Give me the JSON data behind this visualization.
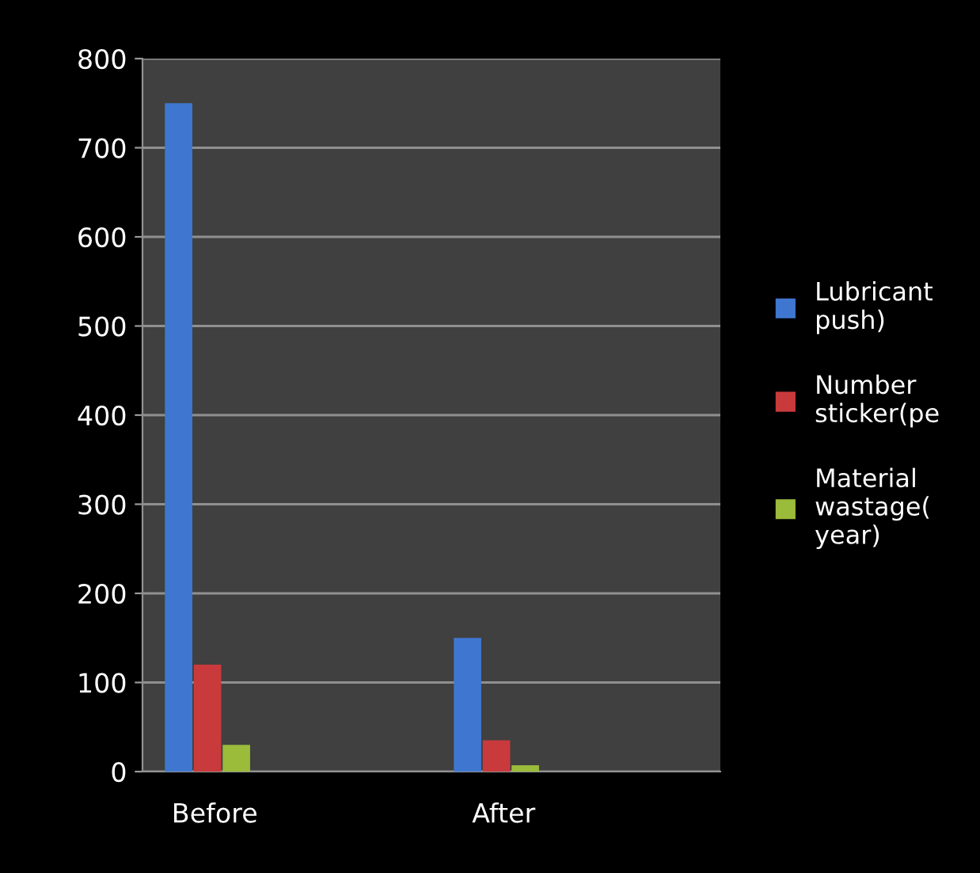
{
  "chart_data": {
    "type": "bar",
    "categories": [
      "Before",
      null,
      "After",
      null
    ],
    "series": [
      {
        "name": "Lubricant\npush)",
        "color": "#3f77d0",
        "values": [
          750,
          null,
          150,
          null
        ]
      },
      {
        "name": "Number\nsticker(pe",
        "color": "#c93a3c",
        "values": [
          120,
          null,
          35,
          null
        ]
      },
      {
        "name": "Material\nwastage(\nyear)",
        "color": "#9bbb3b",
        "values": [
          30,
          null,
          7,
          null
        ]
      }
    ],
    "ylim": [
      0,
      800
    ],
    "yticks": [
      0,
      100,
      200,
      300,
      400,
      500,
      600,
      700,
      800
    ],
    "grid": "y",
    "legend": "right"
  }
}
